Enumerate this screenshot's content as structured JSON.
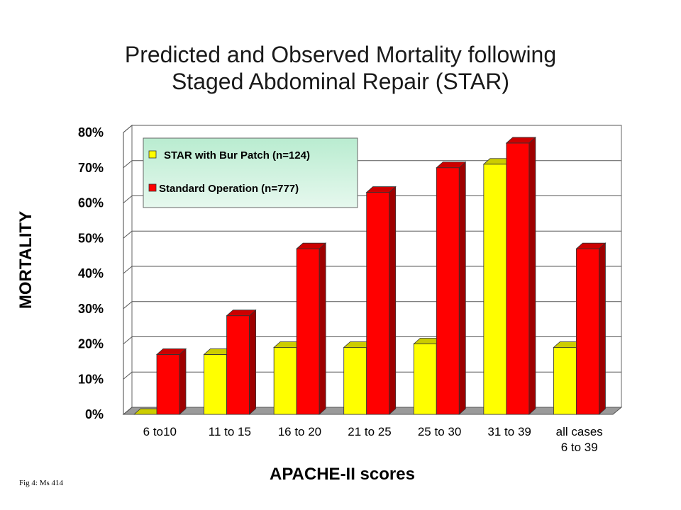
{
  "title": {
    "line1": "Predicted and Observed Mortality following",
    "line2": "Staged Abdominal Repair (STAR)"
  },
  "footnote": "Fig 4: Ms 414",
  "chart_data": {
    "type": "bar",
    "title": "Predicted and Observed Mortality following Staged Abdominal Repair (STAR)",
    "xlabel": "APACHE-II scores",
    "ylabel": "MORTALITY",
    "categories": [
      [
        "6 to10"
      ],
      [
        "11 to 15"
      ],
      [
        "16 to 20"
      ],
      [
        "21 to 25"
      ],
      [
        "25 to 30"
      ],
      [
        "31 to 39"
      ],
      [
        "all cases",
        "6 to 39"
      ]
    ],
    "series": [
      {
        "name": "STAR with Bur Patch (n=124)",
        "values": [
          0,
          17,
          19,
          19,
          20,
          71,
          19
        ],
        "color": "#ffff00"
      },
      {
        "name": "Standard Operation (n=777)",
        "values": [
          17,
          28,
          47,
          63,
          70,
          77,
          47
        ],
        "color": "#ff0000"
      }
    ],
    "ylim": [
      0,
      80
    ],
    "yticks": [
      "0%",
      "10%",
      "20%",
      "30%",
      "40%",
      "50%",
      "60%",
      "70%",
      "80%"
    ],
    "grid": true,
    "legend_position": "top-left",
    "style": "3d-column"
  }
}
